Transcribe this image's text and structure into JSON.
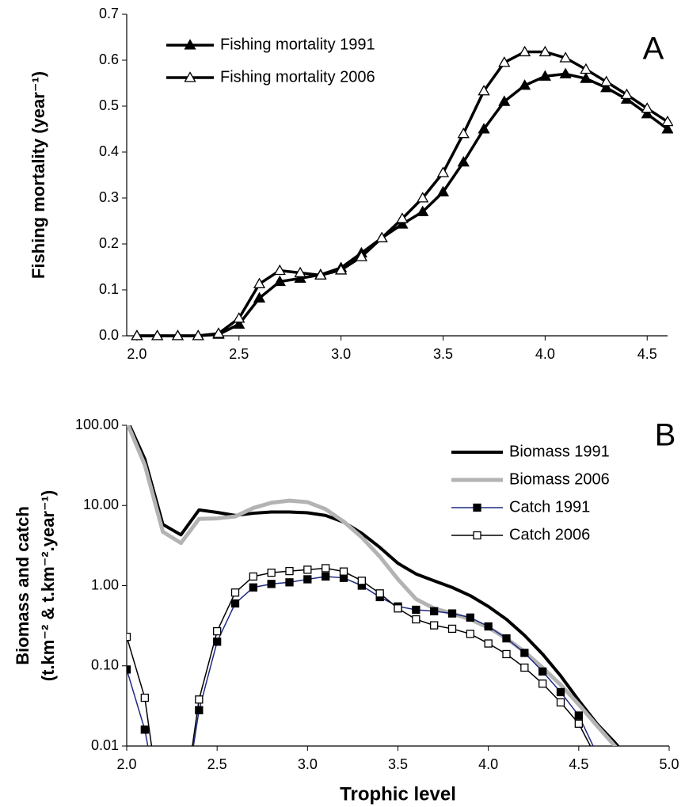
{
  "chart_data": [
    {
      "type": "line",
      "title": "A",
      "ylabel": [
        "Fishing mortality (year⁻¹)"
      ],
      "x": [
        2.0,
        2.1,
        2.2,
        2.3,
        2.4,
        2.5,
        2.6,
        2.7,
        2.8,
        2.9,
        3.0,
        3.1,
        3.2,
        3.3,
        3.4,
        3.5,
        3.6,
        3.7,
        3.8,
        3.9,
        4.0,
        4.1,
        4.2,
        4.3,
        4.4,
        4.5,
        4.6
      ],
      "series": [
        {
          "name": "Fishing mortality 1991",
          "color": "#000000",
          "marker": "triangle",
          "filled": true,
          "line_width": 3.5,
          "values": [
            0,
            0,
            0,
            0,
            0.003,
            0.025,
            0.082,
            0.118,
            0.125,
            0.133,
            0.148,
            0.18,
            0.213,
            0.243,
            0.27,
            0.313,
            0.378,
            0.45,
            0.51,
            0.545,
            0.565,
            0.57,
            0.56,
            0.54,
            0.515,
            0.483,
            0.45
          ]
        },
        {
          "name": "Fishing mortality 2006",
          "color": "#000000",
          "marker": "triangle",
          "filled": false,
          "line_width": 3.5,
          "values": [
            0,
            0,
            0,
            0,
            0.005,
            0.038,
            0.113,
            0.142,
            0.137,
            0.132,
            0.143,
            0.172,
            0.213,
            0.255,
            0.3,
            0.355,
            0.44,
            0.533,
            0.595,
            0.618,
            0.618,
            0.605,
            0.58,
            0.553,
            0.525,
            0.495,
            0.466
          ]
        }
      ],
      "xlim": [
        1.95,
        4.6
      ],
      "xticks": [
        {
          "value": 2.0,
          "label": "2.0"
        },
        2.5,
        {
          "value": 3.0,
          "label": "3.0"
        },
        3.5,
        {
          "value": 4.0,
          "label": "4.0"
        },
        4.5
      ],
      "ylim": [
        0,
        0.7
      ],
      "yticks": [
        {
          "value": 0,
          "label": "0.0"
        },
        0.1,
        0.2,
        0.3,
        0.4,
        0.5,
        0.6,
        0.7
      ],
      "log_y": false,
      "grid": false,
      "legend": "upper-left"
    },
    {
      "type": "line",
      "title": "B",
      "ylabel": [
        "Biomass and catch",
        "(t.km⁻² & t.km⁻².year⁻¹)"
      ],
      "xlabel": "Trophic level",
      "x": [
        2.0,
        2.1,
        2.2,
        2.3,
        2.4,
        2.5,
        2.6,
        2.7,
        2.8,
        2.9,
        3.0,
        3.1,
        3.2,
        3.3,
        3.4,
        3.5,
        3.6,
        3.7,
        3.8,
        3.9,
        4.0,
        4.1,
        4.2,
        4.3,
        4.4,
        4.5,
        4.6,
        4.7,
        4.8
      ],
      "series": [
        {
          "name": "Biomass 1991",
          "color": "#000000",
          "marker": "none",
          "filled": false,
          "line_width": 4,
          "values": [
            120,
            38,
            5.8,
            4.3,
            8.8,
            8.2,
            7.5,
            8.0,
            8.3,
            8.3,
            8.1,
            7.5,
            6.2,
            4.5,
            3.0,
            1.9,
            1.4,
            1.15,
            0.95,
            0.75,
            0.55,
            0.38,
            0.24,
            0.14,
            0.075,
            0.037,
            0.019,
            0.011,
            0.006
          ]
        },
        {
          "name": "Biomass 2006",
          "color": "#b3b3b3",
          "marker": "none",
          "filled": false,
          "line_width": 5,
          "values": [
            110,
            32,
            4.7,
            3.4,
            6.8,
            6.9,
            7.3,
            9.3,
            10.8,
            11.5,
            11.0,
            9.0,
            6.3,
            4.0,
            2.3,
            1.2,
            0.68,
            0.52,
            0.45,
            0.38,
            0.3,
            0.22,
            0.15,
            0.095,
            0.058,
            0.033,
            0.018,
            0.01,
            0.005
          ]
        },
        {
          "name": "Catch 1991",
          "color": "#1f2a80",
          "marker": "square",
          "filled": true,
          "line_width": 1.5,
          "values": [
            0.09,
            0.016,
            0.001,
            0.001,
            0.028,
            0.2,
            0.6,
            0.95,
            1.05,
            1.1,
            1.2,
            1.3,
            1.25,
            1.0,
            0.72,
            0.55,
            0.5,
            0.48,
            0.45,
            0.4,
            0.31,
            0.22,
            0.145,
            0.085,
            0.047,
            0.024,
            0.008,
            null,
            null
          ]
        },
        {
          "name": "Catch 2006",
          "color": "#000000",
          "marker": "square",
          "filled": false,
          "line_width": 1.5,
          "values": [
            0.23,
            0.04,
            0.001,
            0.001,
            0.038,
            0.27,
            0.82,
            1.3,
            1.45,
            1.52,
            1.58,
            1.65,
            1.5,
            1.15,
            0.8,
            0.52,
            0.38,
            0.32,
            0.29,
            0.25,
            0.19,
            0.14,
            0.095,
            0.06,
            0.035,
            0.019,
            0.007,
            null,
            null
          ]
        }
      ],
      "xlim": [
        2.0,
        5.0
      ],
      "xticks": [
        {
          "value": 2.0,
          "label": "2.0"
        },
        2.5,
        {
          "value": 3.0,
          "label": "3.0"
        },
        3.5,
        {
          "value": 4.0,
          "label": "4.0"
        },
        4.5,
        {
          "value": 5.0,
          "label": "5.0"
        }
      ],
      "ylim": [
        0.01,
        100
      ],
      "yticks": [
        0.01,
        {
          "value": 0.1,
          "label": "0.10"
        },
        {
          "value": 1,
          "label": "1.00"
        },
        {
          "value": 10,
          "label": "10.00"
        },
        {
          "value": 100,
          "label": "100.00"
        }
      ],
      "log_y": true,
      "grid": false,
      "legend": "upper-right"
    }
  ]
}
